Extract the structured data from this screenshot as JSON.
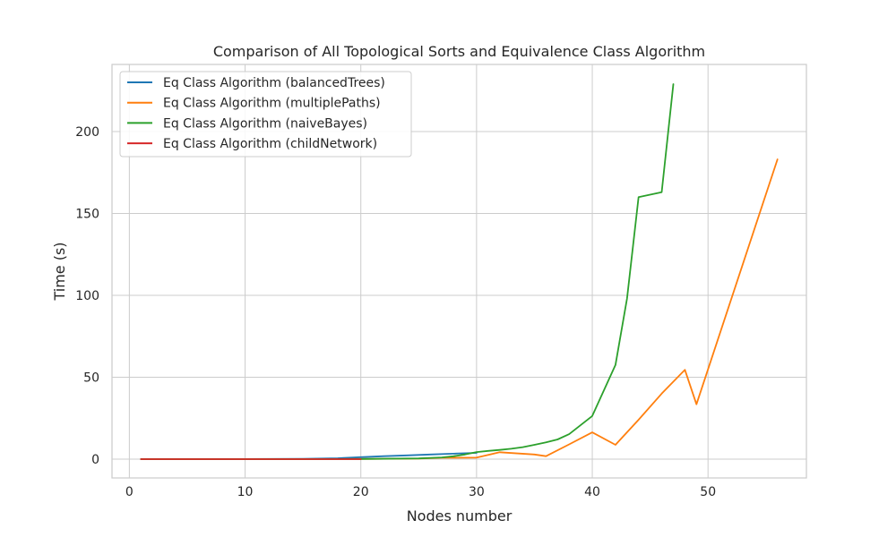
{
  "chart_data": {
    "type": "line",
    "title": "Comparison of All Topological Sorts and Equivalence Class Algorithm",
    "xlabel": "Nodes number",
    "ylabel": "Time (s)",
    "xlim": [
      -1.5,
      58.5
    ],
    "ylim": [
      -11.5,
      241
    ],
    "xticks": [
      0,
      10,
      20,
      30,
      40,
      50
    ],
    "yticks": [
      0,
      50,
      100,
      150,
      200
    ],
    "grid": true,
    "legend_position": "top-left",
    "series": [
      {
        "name": "Eq Class Algorithm (balancedTrees)",
        "color": "#1f77b4",
        "x": [
          1,
          5,
          10,
          15,
          18,
          20,
          22,
          24,
          26,
          28,
          30
        ],
        "y": [
          0,
          0,
          0.05,
          0.2,
          0.5,
          1.2,
          1.8,
          2.3,
          2.8,
          3.3,
          3.8
        ]
      },
      {
        "name": "Eq Class Algorithm (multiplePaths)",
        "color": "#ff7f0e",
        "x": [
          1,
          5,
          10,
          15,
          20,
          25,
          27,
          30,
          32,
          35,
          36,
          38,
          40,
          42,
          44,
          46,
          48,
          49,
          56
        ],
        "y": [
          0,
          0,
          0,
          0,
          0.1,
          0.3,
          0.8,
          0.9,
          4.2,
          2.8,
          1.8,
          9,
          16.3,
          8.7,
          24,
          40,
          54.5,
          33.5,
          183
        ]
      },
      {
        "name": "Eq Class Algorithm (naiveBayes)",
        "color": "#2ca02c",
        "x": [
          1,
          5,
          10,
          15,
          20,
          25,
          27,
          28,
          29,
          30,
          31,
          32,
          33,
          34,
          35,
          36,
          37,
          38,
          40,
          42,
          43,
          44,
          45,
          46,
          47
        ],
        "y": [
          0,
          0,
          0,
          0,
          0.1,
          0.4,
          1,
          1.7,
          2.8,
          4.3,
          5,
          5.6,
          6.3,
          7.3,
          8.7,
          10.2,
          12,
          15.2,
          26.3,
          57.5,
          98,
          160,
          161.5,
          163,
          229
        ]
      },
      {
        "name": "Eq Class Algorithm (childNetwork)",
        "color": "#d62728",
        "x": [
          1,
          5,
          10,
          15,
          18,
          20
        ],
        "y": [
          0,
          0,
          0,
          0,
          0,
          0
        ]
      }
    ]
  }
}
